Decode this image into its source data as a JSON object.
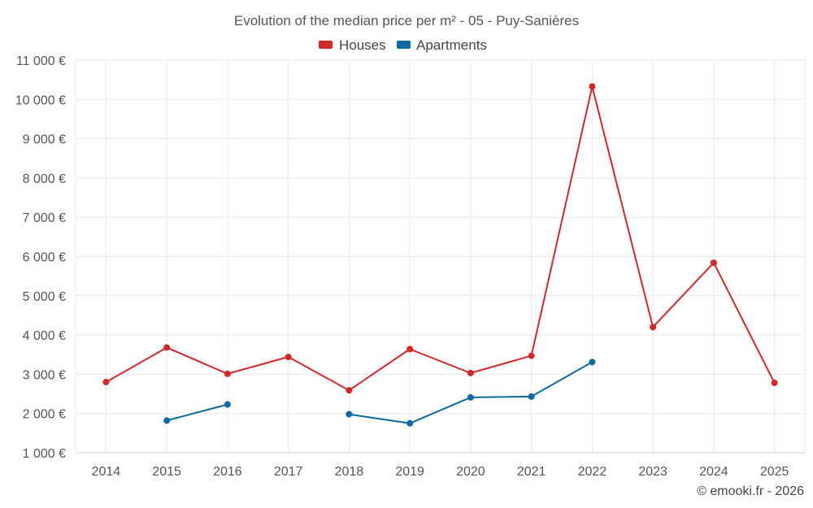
{
  "chart_data": {
    "type": "line",
    "title": "Evolution of the median price per m² - 05 - Puy-Sanières",
    "categories": [
      "2014",
      "2015",
      "2016",
      "2017",
      "2018",
      "2019",
      "2020",
      "2021",
      "2022",
      "2023",
      "2024",
      "2025"
    ],
    "y_ticks": [
      "1 000 €",
      "2 000 €",
      "3 000 €",
      "4 000 €",
      "5 000 €",
      "6 000 €",
      "7 000 €",
      "8 000 €",
      "9 000 €",
      "10 000 €",
      "11 000 €"
    ],
    "ylim": [
      1000,
      11000
    ],
    "grid": true,
    "legend_position": "top-center",
    "series": [
      {
        "name": "Houses",
        "color": "#d62728",
        "values": [
          2800,
          3680,
          3010,
          3440,
          2590,
          3640,
          3030,
          3470,
          10330,
          4200,
          5840,
          2780
        ]
      },
      {
        "name": "Apartments",
        "color": "#0a6aa1",
        "values": [
          null,
          1820,
          2230,
          null,
          1980,
          1750,
          2410,
          2430,
          3310,
          null,
          null,
          null
        ]
      }
    ]
  },
  "credit": "© emooki.fr - 2026"
}
